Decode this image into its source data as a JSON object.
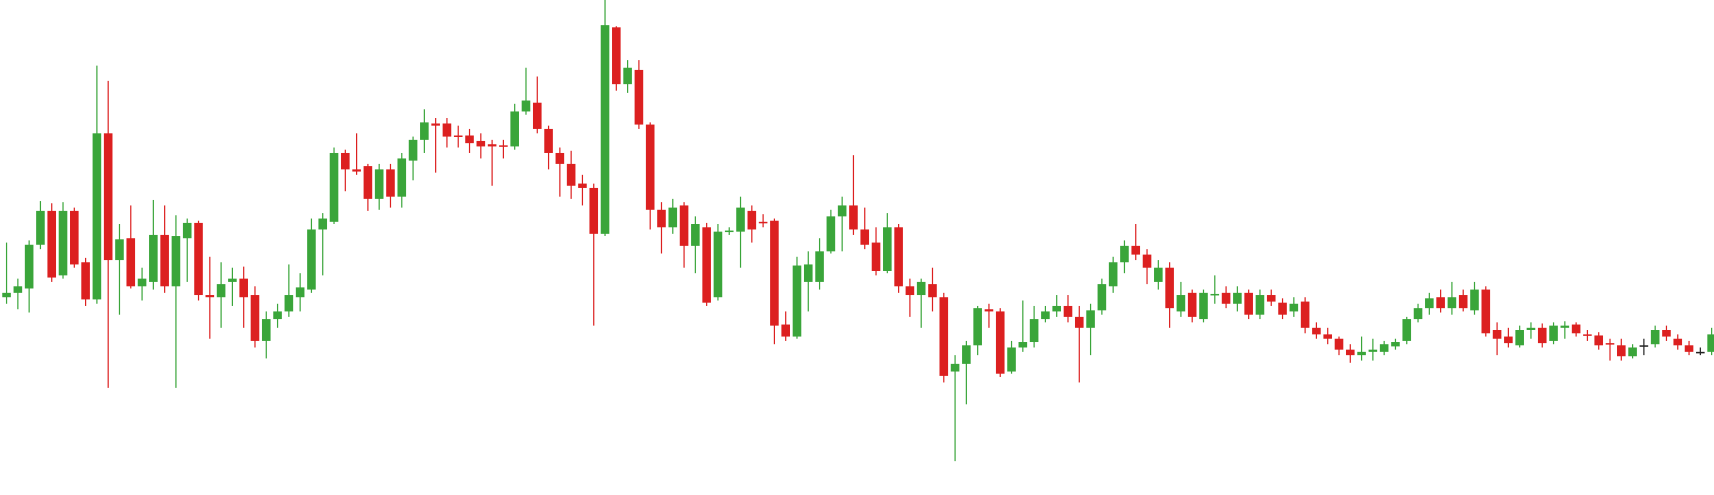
{
  "chart_data": {
    "type": "candlestick",
    "ylim": [
      0,
      453
    ],
    "up_color": "#3aa53a",
    "down_color": "#dc2020",
    "neutral_color": "#222222",
    "open": [
      181,
      185,
      189,
      229,
      260,
      201,
      260,
      213,
      179,
      331,
      215,
      235,
      191,
      195,
      238,
      191,
      235,
      249,
      183,
      181,
      195,
      198,
      183,
      141,
      161,
      168,
      181,
      188,
      243,
      250,
      313,
      298,
      301,
      271,
      298,
      273,
      306,
      325,
      340,
      340,
      329,
      329,
      324,
      321,
      320,
      319,
      351,
      359,
      335,
      313,
      303,
      285,
      281,
      239,
      428,
      376,
      389,
      339,
      261,
      245,
      265,
      228,
      245,
      181,
      241,
      241,
      260,
      250,
      251,
      156,
      145,
      195,
      195,
      223,
      255,
      265,
      243,
      231,
      205,
      245,
      191,
      183,
      193,
      181,
      113,
      120,
      137,
      170,
      168,
      113,
      135,
      140,
      161,
      168,
      173,
      163,
      153,
      169,
      191,
      213,
      228,
      220,
      195,
      208,
      168,
      185,
      161,
      183,
      185,
      175,
      185,
      165,
      183,
      176,
      168,
      177,
      153,
      147,
      143,
      133,
      128,
      131,
      131,
      136,
      141,
      161,
      171,
      181,
      171,
      183,
      169,
      188,
      151,
      145,
      137,
      151,
      153,
      141,
      153,
      156,
      147,
      146,
      139,
      137,
      127,
      137,
      138,
      151,
      143,
      137,
      131,
      131
    ],
    "high": [
      231,
      198,
      233,
      269,
      267,
      268,
      263,
      217,
      393,
      379,
      248,
      265,
      208,
      270,
      265,
      256,
      253,
      251,
      218,
      213,
      208,
      209,
      191,
      168,
      175,
      211,
      203,
      253,
      258,
      318,
      316,
      331,
      303,
      303,
      303,
      313,
      328,
      353,
      345,
      345,
      338,
      335,
      331,
      325,
      325,
      358,
      391,
      383,
      338,
      318,
      315,
      293,
      285,
      453,
      429,
      398,
      398,
      341,
      268,
      271,
      268,
      255,
      249,
      248,
      245,
      273,
      265,
      257,
      253,
      168,
      218,
      223,
      235,
      261,
      273,
      311,
      263,
      245,
      258,
      248,
      198,
      198,
      208,
      185,
      128,
      141,
      173,
      175,
      171,
      141,
      178,
      173,
      173,
      183,
      183,
      173,
      175,
      198,
      218,
      233,
      248,
      225,
      215,
      213,
      195,
      188,
      188,
      201,
      191,
      191,
      188,
      188,
      188,
      180,
      181,
      181,
      158,
      153,
      145,
      138,
      145,
      143,
      141,
      143,
      163,
      175,
      185,
      188,
      195,
      188,
      195,
      191,
      158,
      153,
      155,
      158,
      157,
      158,
      159,
      158,
      151,
      149,
      143,
      143,
      138,
      143,
      155,
      155,
      147,
      141,
      135,
      153
    ],
    "low": [
      175,
      170,
      167,
      225,
      195,
      198,
      208,
      173,
      175,
      98,
      165,
      189,
      178,
      188,
      185,
      98,
      195,
      178,
      143,
      153,
      173,
      153,
      135,
      125,
      153,
      163,
      168,
      185,
      201,
      248,
      278,
      293,
      260,
      261,
      263,
      263,
      288,
      313,
      295,
      318,
      318,
      313,
      308,
      283,
      308,
      316,
      348,
      331,
      298,
      273,
      271,
      265,
      155,
      237,
      370,
      368,
      335,
      243,
      221,
      239,
      208,
      203,
      173,
      178,
      238,
      208,
      231,
      245,
      138,
      141,
      143,
      168,
      188,
      221,
      223,
      238,
      225,
      201,
      203,
      185,
      163,
      153,
      168,
      103,
      31,
      83,
      128,
      153,
      108,
      111,
      131,
      135,
      158,
      163,
      158,
      103,
      128,
      165,
      185,
      203,
      215,
      193,
      188,
      153,
      163,
      158,
      158,
      175,
      171,
      168,
      161,
      161,
      173,
      161,
      163,
      148,
      143,
      138,
      128,
      121,
      123,
      123,
      128,
      133,
      138,
      158,
      165,
      167,
      165,
      168,
      165,
      145,
      128,
      135,
      135,
      143,
      135,
      138,
      143,
      145,
      141,
      133,
      123,
      123,
      125,
      128,
      135,
      141,
      133,
      128,
      128,
      128
    ],
    "close": [
      185,
      191,
      229,
      260,
      199,
      260,
      211,
      179,
      331,
      215,
      234,
      191,
      198,
      238,
      191,
      237,
      249,
      183,
      181,
      193,
      198,
      181,
      141,
      161,
      168,
      183,
      190,
      243,
      253,
      313,
      298,
      296,
      271,
      298,
      273,
      308,
      325,
      341,
      338,
      328,
      328,
      322,
      319,
      319,
      319,
      351,
      361,
      335,
      313,
      303,
      283,
      281,
      239,
      430,
      376,
      391,
      339,
      261,
      245,
      263,
      228,
      248,
      176,
      241,
      242,
      263,
      243,
      249,
      155,
      145,
      210,
      211,
      223,
      255,
      265,
      243,
      229,
      205,
      245,
      191,
      183,
      195,
      181,
      109,
      120,
      137,
      171,
      168,
      111,
      135,
      140,
      161,
      168,
      173,
      163,
      153,
      169,
      193,
      213,
      228,
      220,
      208,
      208,
      171,
      183,
      163,
      185,
      184,
      175,
      185,
      165,
      183,
      177,
      165,
      175,
      153,
      147,
      143,
      133,
      128,
      131,
      133,
      138,
      140,
      161,
      171,
      180,
      171,
      181,
      171,
      188,
      148,
      143,
      139,
      151,
      153,
      139,
      155,
      155,
      148,
      146,
      137,
      138,
      127,
      135,
      137,
      151,
      145,
      137,
      131,
      131,
      147
    ]
  }
}
